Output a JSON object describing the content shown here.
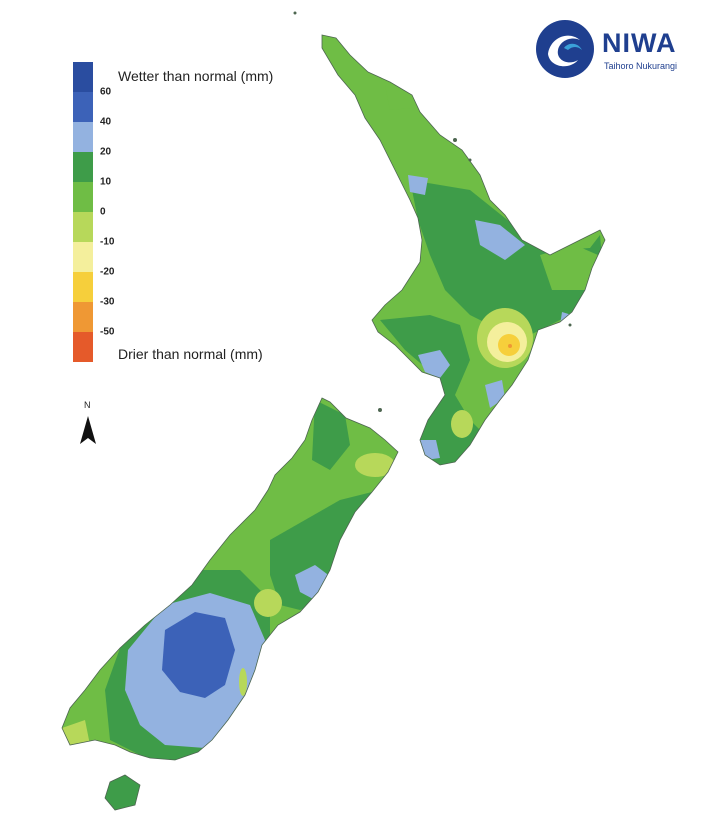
{
  "legend": {
    "wetter_label": "Wetter than normal (mm)",
    "drier_label": "Drier than normal (mm)",
    "classes": [
      {
        "color": "#2a4da0"
      },
      {
        "color": "#3c62b8"
      },
      {
        "color": "#93b2e0"
      },
      {
        "color": "#3e9c49"
      },
      {
        "color": "#6fbd45"
      },
      {
        "color": "#b7d85a"
      },
      {
        "color": "#f4ef9c"
      },
      {
        "color": "#f6cf3b"
      },
      {
        "color": "#ef9834"
      },
      {
        "color": "#e55a2a"
      }
    ],
    "ticks": [
      "60",
      "40",
      "20",
      "10",
      "0",
      "-10",
      "-20",
      "-30",
      "-50"
    ]
  },
  "north_arrow": {
    "label": "N"
  },
  "logo": {
    "name": "NIWA",
    "subtitle": "Taihoro Nukurangi"
  },
  "colors": {
    "wet_60": "#3c62b8",
    "wet_40": "#93b2e0",
    "wet_20": "#3e9c49",
    "wet_10": "#6fbd45",
    "dry_10": "#b7d85a",
    "dry_20": "#f4ef9c",
    "dry_30": "#f6cf3b",
    "dry_50": "#ef9834",
    "coast": "#4d6650",
    "brand": "#1f3f8f"
  }
}
